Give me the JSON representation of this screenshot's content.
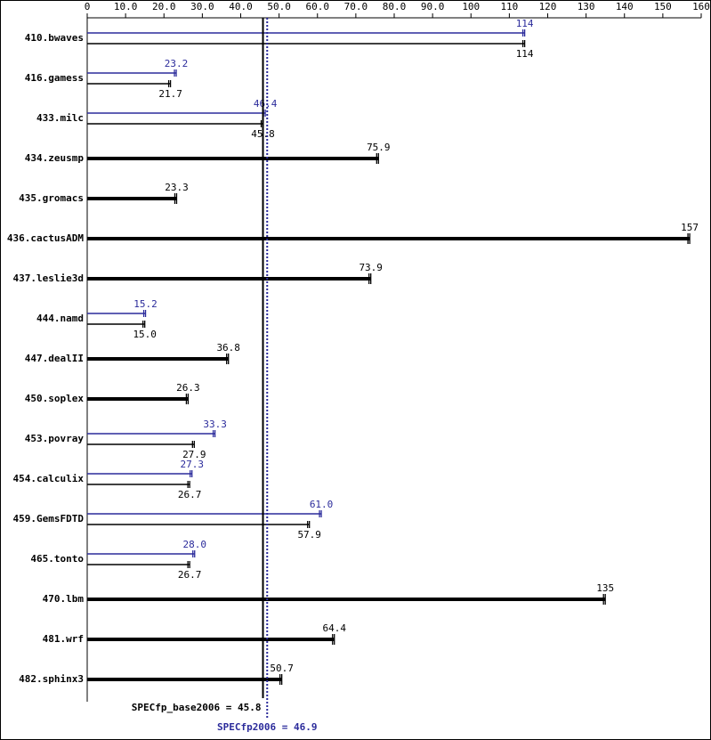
{
  "chart_data": {
    "type": "bar",
    "orientation": "horizontal",
    "categories": [
      "410.bwaves",
      "416.gamess",
      "433.milc",
      "434.zeusmp",
      "435.gromacs",
      "436.cactusADM",
      "437.leslie3d",
      "444.namd",
      "447.dealII",
      "450.soplex",
      "453.povray",
      "454.calculix",
      "459.GemsFDTD",
      "465.tonto",
      "470.lbm",
      "481.wrf",
      "482.sphinx3"
    ],
    "series": [
      {
        "color": "#000000",
        "values": [
          114,
          21.7,
          45.8,
          75.9,
          23.3,
          157,
          73.9,
          15.0,
          36.8,
          26.3,
          27.9,
          26.7,
          57.9,
          26.7,
          135,
          64.4,
          50.7
        ],
        "value_labels": [
          "114",
          "21.7",
          "45.8",
          "75.9",
          "23.3",
          "157",
          "73.9",
          "15.0",
          "36.8",
          "26.3",
          "27.9",
          "26.7",
          "57.9",
          "26.7",
          "135",
          "64.4",
          "50.7"
        ]
      },
      {
        "color": "#2b2b9b",
        "values": [
          114,
          23.2,
          46.4,
          null,
          null,
          null,
          null,
          15.2,
          null,
          null,
          33.3,
          27.3,
          61.0,
          28.0,
          null,
          null,
          null
        ],
        "value_labels": [
          "114",
          "23.2",
          "46.4",
          null,
          null,
          null,
          null,
          "15.2",
          null,
          null,
          "33.3",
          "27.3",
          "61.0",
          "28.0",
          null,
          null,
          null
        ]
      }
    ],
    "xlim": [
      0,
      160
    ],
    "xticks": [
      0,
      {
        "value": 10,
        "label": "10.0"
      },
      {
        "value": 20,
        "label": "20.0"
      },
      {
        "value": 30,
        "label": "30.0"
      },
      {
        "value": 40,
        "label": "40.0"
      },
      {
        "value": 50,
        "label": "50.0"
      },
      {
        "value": 60,
        "label": "60.0"
      },
      {
        "value": 70,
        "label": "70.0"
      },
      {
        "value": 80,
        "label": "80.0"
      },
      {
        "value": 90,
        "label": "90.0"
      },
      100,
      110,
      120,
      130,
      140,
      150,
      160
    ],
    "reference_lines": [
      {
        "label": "SPECfp_base2006 = 45.8",
        "value": 45.8,
        "color": "#000000",
        "style": "solid"
      },
      {
        "label": "SPECfp2006 = 46.9",
        "value": 46.9,
        "color": "#2b2b9b",
        "style": "dotted"
      }
    ]
  }
}
